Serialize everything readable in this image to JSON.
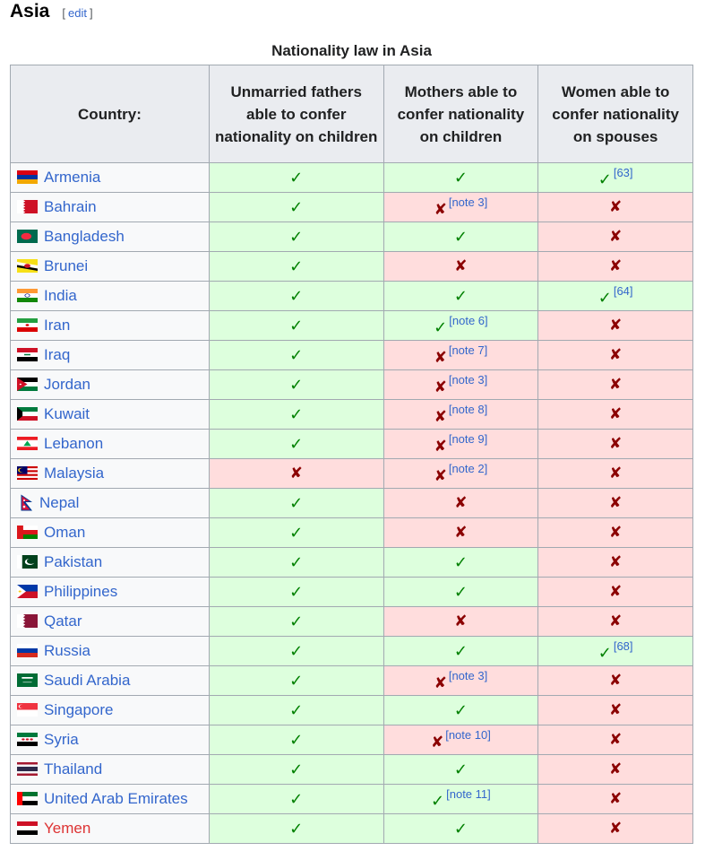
{
  "heading": {
    "title": "Asia",
    "edit_open": "[",
    "edit_label": "edit",
    "edit_close": "]"
  },
  "table": {
    "caption": "Nationality law in Asia",
    "headers": [
      "Country:",
      "Unmarried fathers able to confer nationality on children",
      "Mothers able to confer nationality on children",
      "Women able to confer nationality on spouses"
    ],
    "rows": [
      {
        "country": "Armenia",
        "fathers": "✓",
        "mothers": "✓",
        "mothers_note": "",
        "spouses": "✓",
        "spouses_note": "[63]"
      },
      {
        "country": "Bahrain",
        "fathers": "✓",
        "mothers": "✘",
        "mothers_note": "[note 3]",
        "spouses": "✘",
        "spouses_note": ""
      },
      {
        "country": "Bangladesh",
        "fathers": "✓",
        "mothers": "✓",
        "mothers_note": "",
        "spouses": "✘",
        "spouses_note": ""
      },
      {
        "country": "Brunei",
        "fathers": "✓",
        "mothers": "✘",
        "mothers_note": "",
        "spouses": "✘",
        "spouses_note": ""
      },
      {
        "country": "India",
        "fathers": "✓",
        "mothers": "✓",
        "mothers_note": "",
        "spouses": "✓",
        "spouses_note": "[64]"
      },
      {
        "country": "Iran",
        "fathers": "✓",
        "mothers": "✓",
        "mothers_note": "[note 6]",
        "spouses": "✘",
        "spouses_note": ""
      },
      {
        "country": "Iraq",
        "fathers": "✓",
        "mothers": "✘",
        "mothers_note": "[note 7]",
        "spouses": "✘",
        "spouses_note": ""
      },
      {
        "country": "Jordan",
        "fathers": "✓",
        "mothers": "✘",
        "mothers_note": "[note 3]",
        "spouses": "✘",
        "spouses_note": ""
      },
      {
        "country": "Kuwait",
        "fathers": "✓",
        "mothers": "✘",
        "mothers_note": "[note 8]",
        "spouses": "✘",
        "spouses_note": ""
      },
      {
        "country": "Lebanon",
        "fathers": "✓",
        "mothers": "✘",
        "mothers_note": "[note 9]",
        "spouses": "✘",
        "spouses_note": ""
      },
      {
        "country": "Malaysia",
        "fathers": "✘",
        "mothers": "✘",
        "mothers_note": "[note 2]",
        "spouses": "✘",
        "spouses_note": ""
      },
      {
        "country": "Nepal",
        "fathers": "✓",
        "mothers": "✘",
        "mothers_note": "",
        "spouses": "✘",
        "spouses_note": ""
      },
      {
        "country": "Oman",
        "fathers": "✓",
        "mothers": "✘",
        "mothers_note": "",
        "spouses": "✘",
        "spouses_note": ""
      },
      {
        "country": "Pakistan",
        "fathers": "✓",
        "mothers": "✓",
        "mothers_note": "",
        "spouses": "✘",
        "spouses_note": ""
      },
      {
        "country": "Philippines",
        "fathers": "✓",
        "mothers": "✓",
        "mothers_note": "",
        "spouses": "✘",
        "spouses_note": ""
      },
      {
        "country": "Qatar",
        "fathers": "✓",
        "mothers": "✘",
        "mothers_note": "",
        "spouses": "✘",
        "spouses_note": ""
      },
      {
        "country": "Russia",
        "fathers": "✓",
        "mothers": "✓",
        "mothers_note": "",
        "spouses": "✓",
        "spouses_note": "[68]"
      },
      {
        "country": "Saudi Arabia",
        "fathers": "✓",
        "mothers": "✘",
        "mothers_note": "[note 3]",
        "spouses": "✘",
        "spouses_note": ""
      },
      {
        "country": "Singapore",
        "fathers": "✓",
        "mothers": "✓",
        "mothers_note": "",
        "spouses": "✘",
        "spouses_note": ""
      },
      {
        "country": "Syria",
        "fathers": "✓",
        "mothers": "✘",
        "mothers_note": "[note 10]",
        "spouses": "✘",
        "spouses_note": ""
      },
      {
        "country": "Thailand",
        "fathers": "✓",
        "mothers": "✓",
        "mothers_note": "",
        "spouses": "✘",
        "spouses_note": ""
      },
      {
        "country": "United Arab Emirates",
        "fathers": "✓",
        "mothers": "✓",
        "mothers_note": "[note 11]",
        "spouses": "✘",
        "spouses_note": ""
      },
      {
        "country": "Yemen",
        "fathers": "✓",
        "mothers": "✓",
        "mothers_note": "",
        "spouses": "✘",
        "spouses_note": ""
      }
    ]
  },
  "colors": {
    "yes_bg": "#dfd",
    "no_bg": "#fdd",
    "header_bg": "#eaecf0",
    "link": "#3366cc",
    "redlink": "#d33",
    "check": "#008000",
    "cross": "#8b0000"
  }
}
